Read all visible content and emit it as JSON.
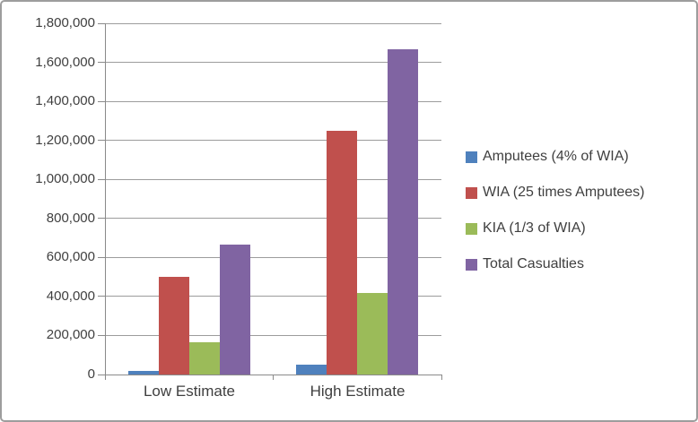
{
  "chart_data": {
    "type": "bar",
    "title": "",
    "xlabel": "",
    "ylabel": "",
    "categories": [
      "Low Estimate",
      "High Estimate"
    ],
    "series": [
      {
        "name": "Amputees (4% of WIA)",
        "color": "#4F81BD",
        "values": [
          20000,
          50000
        ]
      },
      {
        "name": "WIA (25 times Amputees)",
        "color": "#C0504D",
        "values": [
          500000,
          1250000
        ]
      },
      {
        "name": "KIA (1/3 of WIA)",
        "color": "#9BBB59",
        "values": [
          166667,
          416667
        ]
      },
      {
        "name": "Total Casualties",
        "color": "#8064A2",
        "values": [
          666667,
          1666667
        ]
      }
    ],
    "ylim": [
      0,
      1800000
    ],
    "ytick_step": 200000,
    "yticklabels": [
      "0",
      "200,000",
      "400,000",
      "600,000",
      "800,000",
      "1,000,000",
      "1,200,000",
      "1,400,000",
      "1,600,000",
      "1,800,000"
    ],
    "grid": true,
    "legend_position": "right"
  },
  "styles": {
    "background": "#FFFFFF",
    "outer_border": "#9D9D9D",
    "gridline_color": "#9C9C9C",
    "axis_color": "#8A8A8A",
    "text_color": "#3F3F3F"
  }
}
